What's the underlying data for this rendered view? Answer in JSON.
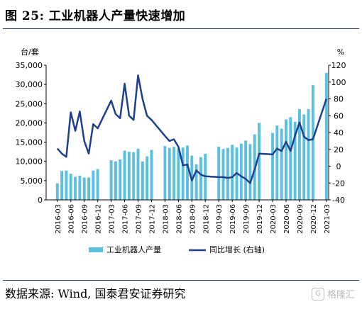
{
  "title": "图 25: 工业机器人产量快速增加",
  "source": "数据来源: Wind, 国泰君安证券研究",
  "watermark": {
    "text": "格隆汇",
    "logo_icon": "gelonghui-logo-icon"
  },
  "chart_data": {
    "type": "bar",
    "title": "",
    "y_left_unit": "台/套",
    "y_right_unit": "%",
    "y_left_ticks": [
      "0",
      "5,000",
      "10,000",
      "15,000",
      "20,000",
      "25,000",
      "30,000",
      "35,000"
    ],
    "y_left_lim": [
      0,
      35000
    ],
    "y_right_ticks": [
      "-40",
      "-20",
      "0",
      "20",
      "40",
      "60",
      "80",
      "100",
      "120"
    ],
    "y_right_lim": [
      -40,
      120
    ],
    "x_tick_labels": [
      "2016-03",
      "2016-06",
      "2016-09",
      "2016-12",
      "2017-03",
      "2017-06",
      "2017-09",
      "2017-12",
      "2018-03",
      "2018-06",
      "2018-09",
      "2018-12",
      "2019-03",
      "2019-06",
      "2019-09",
      "2019-12",
      "2020-03",
      "2020-06",
      "2020-09",
      "2020-12",
      "2021-03"
    ],
    "x_tick_months": [
      2,
      5,
      8,
      11,
      14,
      17,
      20,
      23,
      26,
      29,
      32,
      35,
      38,
      41,
      44,
      47,
      50,
      53,
      56,
      59,
      62
    ],
    "months": [
      "2016-01",
      "2016-02",
      "2016-03",
      "2016-04",
      "2016-05",
      "2016-06",
      "2016-07",
      "2016-08",
      "2016-09",
      "2016-10",
      "2016-11",
      "2016-12",
      "2017-01",
      "2017-02",
      "2017-03",
      "2017-04",
      "2017-05",
      "2017-06",
      "2017-07",
      "2017-08",
      "2017-09",
      "2017-10",
      "2017-11",
      "2017-12",
      "2018-01",
      "2018-02",
      "2018-03",
      "2018-04",
      "2018-05",
      "2018-06",
      "2018-07",
      "2018-08",
      "2018-09",
      "2018-10",
      "2018-11",
      "2018-12",
      "2019-01",
      "2019-02",
      "2019-03",
      "2019-04",
      "2019-05",
      "2019-06",
      "2019-07",
      "2019-08",
      "2019-09",
      "2019-10",
      "2019-11",
      "2019-12",
      "2020-01",
      "2020-02",
      "2020-03",
      "2020-04",
      "2020-05",
      "2020-06",
      "2020-07",
      "2020-08",
      "2020-09",
      "2020-10",
      "2020-11",
      "2020-12",
      "2021-01",
      "2021-02",
      "2021-03"
    ],
    "series": [
      {
        "name": "工业机器人产量",
        "kind": "bar",
        "axis": "left",
        "color": "#5bc0de",
        "values": [
          null,
          null,
          4300,
          7500,
          7600,
          6800,
          6000,
          6300,
          5800,
          5800,
          7600,
          8000,
          null,
          null,
          10300,
          10000,
          10500,
          12800,
          12500,
          12400,
          13300,
          10000,
          11300,
          13000,
          null,
          null,
          14000,
          13500,
          13800,
          13400,
          13600,
          14100,
          11500,
          9200,
          11100,
          12000,
          null,
          null,
          13800,
          13200,
          13500,
          14300,
          13600,
          14600,
          15400,
          14500,
          17000,
          20000,
          null,
          null,
          17400,
          19300,
          18500,
          20900,
          21500,
          20300,
          23600,
          22200,
          23600,
          29800,
          null,
          null,
          33000
        ]
      },
      {
        "name": "同比增长 (右轴)",
        "kind": "line",
        "axis": "right",
        "color": "#1f3f8f",
        "values": [
          null,
          null,
          21,
          15,
          11,
          64,
          42,
          65,
          30,
          15,
          50,
          45,
          null,
          null,
          78,
          62,
          57,
          98,
          60,
          55,
          108,
          80,
          60,
          55,
          null,
          null,
          36,
          30,
          32,
          23,
          1,
          2,
          -17,
          -5,
          -10,
          -12,
          null,
          null,
          -13,
          -13,
          -14,
          -13,
          -8,
          -12,
          -15,
          -20,
          -4,
          15,
          null,
          null,
          14,
          21,
          18,
          29,
          18,
          36,
          52,
          35,
          31,
          32,
          null,
          null,
          80
        ]
      }
    ],
    "legend": {
      "position": "bottom",
      "items": [
        "工业机器人产量",
        "同比增长 (右轴)"
      ]
    },
    "grid": false
  }
}
